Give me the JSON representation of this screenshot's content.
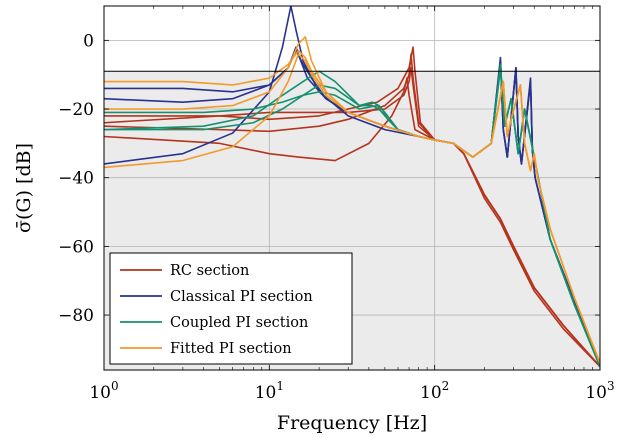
{
  "chart_data": {
    "type": "line",
    "title": "",
    "xlabel": "Frequency [Hz]",
    "ylabel": "σ̄(G) [dB]",
    "xscale": "log",
    "xlim": [
      1,
      1000
    ],
    "ylim": [
      -96,
      10
    ],
    "xticks": [
      {
        "value": 1,
        "mantissa": "10",
        "exp": "0"
      },
      {
        "value": 10,
        "mantissa": "10",
        "exp": "1"
      },
      {
        "value": 100,
        "mantissa": "10",
        "exp": "2"
      },
      {
        "value": 1000,
        "mantissa": "10",
        "exp": "3"
      }
    ],
    "yticks": [
      {
        "value": 0,
        "label": "0"
      },
      {
        "value": -20,
        "label": "−20"
      },
      {
        "value": -40,
        "label": "−40"
      },
      {
        "value": -60,
        "label": "−60"
      },
      {
        "value": -80,
        "label": "−80"
      }
    ],
    "grid": true,
    "threshold_db": -9,
    "shaded_region": {
      "from_db": -96,
      "to_db": -9,
      "color": "#ebebeb"
    },
    "legend_position": "bottom-left",
    "series": [
      {
        "name": "RC section",
        "color": "#b5341e",
        "curves": [
          {
            "x": [
              1,
              5,
              10,
              20,
              30,
              50,
              65,
              70,
              72,
              74,
              80,
              100,
              130,
              150,
              200,
              250,
              300,
              400,
              600,
              1000
            ],
            "y": [
              -25,
              -26,
              -26.5,
              -25,
              -23,
              -19,
              -14,
              -10,
              -4,
              -11,
              -24,
              -29,
              -30,
              -33,
              -45,
              -52,
              -60,
              -72,
              -83,
              -95
            ]
          },
          {
            "x": [
              1,
              5,
              10,
              20,
              30,
              50,
              65,
              70,
              72,
              74,
              80,
              100,
              130,
              150,
              200,
              250,
              300,
              400,
              600,
              1000
            ],
            "y": [
              -24,
              -22,
              -21,
              -21,
              -21,
              -20,
              -16,
              -12,
              -8,
              -13,
              -25,
              -29,
              -30,
              -33,
              -45,
              -52,
              -60,
              -72,
              -83,
              -95
            ]
          },
          {
            "x": [
              1,
              5,
              10,
              15,
              25,
              40,
              55,
              65,
              68,
              70,
              76,
              100,
              130,
              150,
              200,
              250,
              300,
              400,
              600,
              1000
            ],
            "y": [
              -28,
              -30,
              -33,
              -34,
              -35,
              -30,
              -22,
              -15,
              -11,
              -16,
              -26,
              -29,
              -30,
              -33,
              -46,
              -53,
              -61,
              -73,
              -84,
              -95
            ]
          },
          {
            "x": [
              1,
              5,
              10,
              20,
              30,
              45,
              60,
              70,
              74,
              76,
              82,
              100,
              130,
              150,
              200,
              250,
              300,
              400,
              600,
              1000
            ],
            "y": [
              -22,
              -22,
              -23,
              -22,
              -20,
              -18,
              -14,
              -8,
              -2,
              -9,
              -24,
              -29,
              -30,
              -33,
              -45,
              -52,
              -60,
              -72,
              -83,
              -95
            ]
          }
        ]
      },
      {
        "name": "Classical PI section",
        "color": "#29338f",
        "curves": [
          {
            "x": [
              1,
              3,
              6,
              10,
              12,
              13.5,
              14.5,
              16,
              20,
              30,
              50,
              80,
              100,
              130,
              170,
              220,
              250,
              260,
              275,
              310,
              320,
              335,
              380,
              390,
              405,
              500,
              700,
              1000
            ],
            "y": [
              -36,
              -33,
              -27,
              -15,
              -2,
              10,
              3,
              -6,
              -15,
              -22,
              -26,
              -28,
              -29,
              -30,
              -34,
              -30,
              -5,
              -26,
              -34,
              -8,
              -28,
              -36,
              -11,
              -32,
              -40,
              -58,
              -76,
              -94
            ]
          },
          {
            "x": [
              1,
              3,
              6,
              10,
              13,
              14.5,
              15.5,
              17,
              22,
              30,
              50,
              80,
              100,
              130,
              170,
              220,
              250,
              260,
              275,
              310,
              320,
              335,
              380,
              390,
              405,
              500,
              700,
              1000
            ],
            "y": [
              -17,
              -18,
              -17,
              -13,
              -8,
              -2,
              -6,
              -11,
              -17,
              -21,
              -25,
              -28,
              -29,
              -30,
              -34,
              -30,
              -6,
              -26,
              -34,
              -8,
              -28,
              -36,
              -12,
              -32,
              -40,
              -58,
              -76,
              -94
            ]
          },
          {
            "x": [
              1,
              3,
              6,
              10,
              13,
              14.5,
              16,
              18,
              22,
              30,
              50,
              80,
              100,
              130,
              170,
              220,
              250,
              260,
              275,
              310,
              320,
              335,
              380,
              390,
              405,
              500,
              700,
              1000
            ],
            "y": [
              -14,
              -14,
              -15,
              -13,
              -8,
              -3,
              -7,
              -11,
              -17,
              -21,
              -25,
              -28,
              -29,
              -30,
              -34,
              -30,
              -6,
              -26,
              -34,
              -8,
              -28,
              -36,
              -12,
              -32,
              -40,
              -58,
              -76,
              -94
            ]
          }
        ]
      },
      {
        "name": "Coupled PI section",
        "color": "#14916e",
        "curves": [
          {
            "x": [
              1,
              4,
              8,
              12,
              16,
              20,
              25,
              35,
              42,
              46,
              50,
              60,
              80,
              100,
              130,
              170,
              220,
              250,
              265,
              290,
              320,
              350,
              400,
              500,
              700,
              1000
            ],
            "y": [
              -26,
              -25,
              -22,
              -16,
              -12,
              -9,
              -12,
              -19,
              -19,
              -20,
              -22,
              -26,
              -28,
              -29,
              -30,
              -34,
              -30,
              -7,
              -25,
              -17,
              -33,
              -20,
              -34,
              -58,
              -77,
              -95
            ]
          },
          {
            "x": [
              1,
              4,
              8,
              12,
              16,
              20,
              25,
              35,
              42,
              46,
              50,
              60,
              80,
              100,
              130,
              170,
              220,
              250,
              265,
              290,
              320,
              350,
              400,
              500,
              700,
              1000
            ],
            "y": [
              -26,
              -26,
              -24,
              -20,
              -16,
              -13,
              -14,
              -19,
              -18,
              -19,
              -21,
              -26,
              -28,
              -29,
              -30,
              -34,
              -30,
              -8,
              -25,
              -17,
              -33,
              -20,
              -34,
              -58,
              -77,
              -95
            ]
          },
          {
            "x": [
              1,
              4,
              8,
              12,
              16,
              20,
              25,
              35,
              45,
              48,
              52,
              60,
              80,
              100,
              130,
              170,
              220,
              250,
              265,
              290,
              320,
              350,
              400,
              500,
              700,
              1000
            ],
            "y": [
              -21,
              -21,
              -20,
              -18,
              -16,
              -15,
              -16,
              -20,
              -19,
              -20,
              -23,
              -26,
              -28,
              -29,
              -30,
              -34,
              -30,
              -8,
              -25,
              -17,
              -33,
              -20,
              -34,
              -58,
              -77,
              -95
            ]
          }
        ]
      },
      {
        "name": "Fitted PI section",
        "color": "#f39a2c",
        "curves": [
          {
            "x": [
              1,
              3,
              6,
              10,
              13,
              15,
              16.5,
              18,
              22,
              30,
              50,
              80,
              100,
              130,
              170,
              220,
              260,
              275,
              290,
              330,
              350,
              380,
              400,
              420,
              500,
              700,
              1000
            ],
            "y": [
              -20,
              -20,
              -19,
              -15,
              -8,
              -1,
              1,
              -6,
              -15,
              -21,
              -25,
              -28,
              -29,
              -30,
              -34,
              -30,
              -12,
              -28,
              -23,
              -13,
              -30,
              -38,
              -33,
              -40,
              -55,
              -75,
              -94
            ]
          },
          {
            "x": [
              1,
              3,
              6,
              10,
              13,
              15,
              16.5,
              18,
              22,
              30,
              50,
              80,
              100,
              130,
              170,
              220,
              260,
              275,
              290,
              330,
              350,
              380,
              400,
              420,
              500,
              700,
              1000
            ],
            "y": [
              -12,
              -12,
              -13,
              -11,
              -7,
              -3,
              -5,
              -9,
              -15,
              -21,
              -25,
              -28,
              -29,
              -30,
              -34,
              -30,
              -12,
              -28,
              -23,
              -13,
              -30,
              -38,
              -33,
              -40,
              -55,
              -75,
              -94
            ]
          },
          {
            "x": [
              1,
              3,
              6,
              10,
              13,
              15,
              16.5,
              18,
              22,
              30,
              50,
              80,
              100,
              130,
              170,
              220,
              260,
              275,
              290,
              330,
              350,
              380,
              400,
              420,
              500,
              700,
              1000
            ],
            "y": [
              -37,
              -35,
              -31,
              -22,
              -12,
              -4,
              -6,
              -10,
              -16,
              -21,
              -25,
              -28,
              -29,
              -30,
              -34,
              -30,
              -12,
              -28,
              -23,
              -13,
              -30,
              -38,
              -33,
              -40,
              -55,
              -75,
              -94
            ]
          }
        ]
      }
    ]
  }
}
